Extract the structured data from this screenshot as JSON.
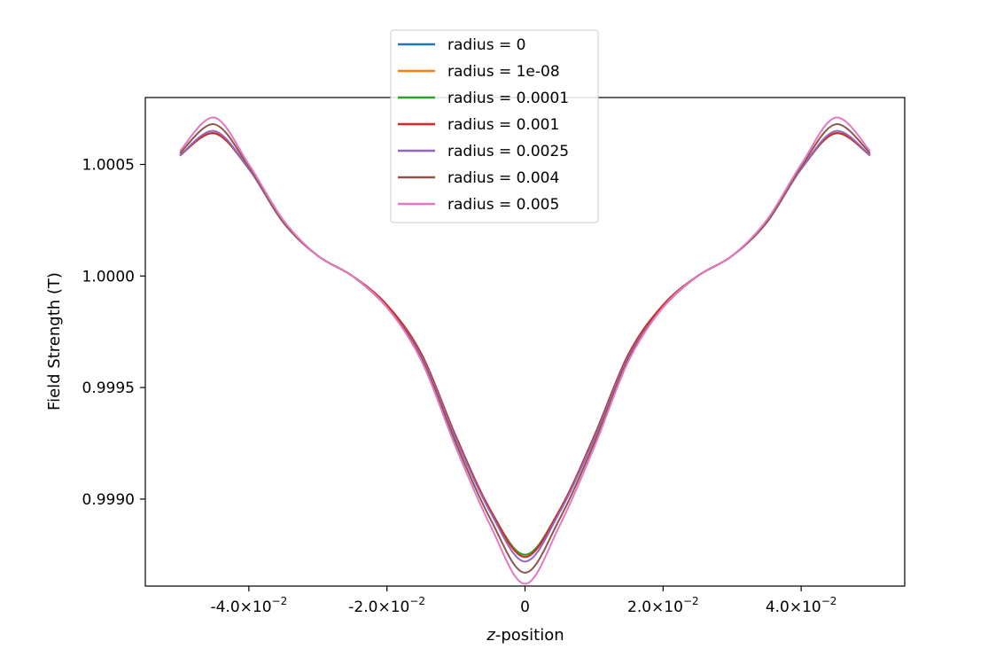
{
  "chart_data": {
    "type": "line",
    "title": "",
    "xlabel_italic": "z",
    "xlabel_rest": "-position",
    "ylabel": "Field Strength (T)",
    "xlim": [
      -0.055,
      0.055
    ],
    "ylim": [
      0.99861,
      1.0008
    ],
    "x_ticks": [
      {
        "value": -0.04,
        "mantissa": "-4.0×10",
        "exponent": "−2"
      },
      {
        "value": -0.02,
        "mantissa": "-2.0×10",
        "exponent": "−2"
      },
      {
        "value": 0.0,
        "mantissa": "0",
        "exponent": ""
      },
      {
        "value": 0.02,
        "mantissa": "2.0×10",
        "exponent": "−2"
      },
      {
        "value": 0.04,
        "mantissa": "4.0×10",
        "exponent": "−2"
      }
    ],
    "y_ticks": [
      {
        "value": 0.999,
        "label": "0.9990"
      },
      {
        "value": 0.9995,
        "label": "0.9995"
      },
      {
        "value": 1.0,
        "label": "1.0000"
      },
      {
        "value": 1.0005,
        "label": "1.0005"
      }
    ],
    "legend_position": "upper-center",
    "grid": false,
    "x": [
      -0.05,
      -0.045,
      -0.04,
      -0.035,
      -0.03,
      -0.025,
      -0.02,
      -0.015,
      -0.01,
      -0.005,
      0.0,
      0.005,
      0.01,
      0.015,
      0.02,
      0.025,
      0.03,
      0.035,
      0.04,
      0.045,
      0.05
    ],
    "series": [
      {
        "name": "radius = 0",
        "color": "#1f77b4",
        "values": [
          1.00054,
          1.00064,
          1.00048,
          1.00024,
          1.00009,
          1.0,
          0.99987,
          0.99965,
          0.99928,
          0.99895,
          0.99875,
          0.99895,
          0.99928,
          0.99965,
          0.99987,
          1.0,
          1.00009,
          1.00024,
          1.00048,
          1.00064,
          1.00054
        ]
      },
      {
        "name": "radius = 1e-08",
        "color": "#ff7f0e",
        "values": [
          1.00054,
          1.00064,
          1.00048,
          1.00024,
          1.00009,
          1.0,
          0.99987,
          0.99965,
          0.99928,
          0.99895,
          0.99875,
          0.99895,
          0.99928,
          0.99965,
          0.99987,
          1.0,
          1.00009,
          1.00024,
          1.00048,
          1.00064,
          1.00054
        ]
      },
      {
        "name": "radius = 0.0001",
        "color": "#2ca02c",
        "values": [
          1.00054,
          1.00064,
          1.00048,
          1.00024,
          1.00009,
          1.0,
          0.99987,
          0.99965,
          0.99928,
          0.99895,
          0.99875,
          0.99895,
          0.99928,
          0.99965,
          0.99987,
          1.0,
          1.00009,
          1.00024,
          1.00048,
          1.00064,
          1.00054
        ]
      },
      {
        "name": "radius = 0.001",
        "color": "#d62728",
        "values": [
          1.00054,
          1.00064,
          1.00048,
          1.00024,
          1.00009,
          1.0,
          0.99987,
          0.99965,
          0.99928,
          0.99895,
          0.99874,
          0.99895,
          0.99928,
          0.99965,
          0.99987,
          1.0,
          1.00009,
          1.00024,
          1.00048,
          1.00064,
          1.00054
        ]
      },
      {
        "name": "radius = 0.0025",
        "color": "#9467bd",
        "values": [
          1.00054,
          1.00065,
          1.00048,
          1.00024,
          1.00009,
          1.0,
          0.99986,
          0.99964,
          0.99927,
          0.99894,
          0.99872,
          0.99894,
          0.99927,
          0.99964,
          0.99986,
          1.0,
          1.00009,
          1.00024,
          1.00048,
          1.00065,
          1.00054
        ]
      },
      {
        "name": "radius = 0.004",
        "color": "#8c564b",
        "values": [
          1.00055,
          1.00068,
          1.00049,
          1.00024,
          1.00009,
          1.0,
          0.99986,
          0.99963,
          0.99925,
          0.99891,
          0.99867,
          0.99891,
          0.99925,
          0.99963,
          0.99986,
          1.0,
          1.00009,
          1.00024,
          1.00049,
          1.00068,
          1.00055
        ]
      },
      {
        "name": "radius = 0.005",
        "color": "#e377c2",
        "values": [
          1.00056,
          1.00071,
          1.0005,
          1.00025,
          1.00009,
          1.0,
          0.99986,
          0.99962,
          0.99923,
          0.99888,
          0.99862,
          0.99888,
          0.99923,
          0.99962,
          0.99986,
          1.0,
          1.00009,
          1.00025,
          1.0005,
          1.00071,
          1.00056
        ]
      }
    ]
  }
}
